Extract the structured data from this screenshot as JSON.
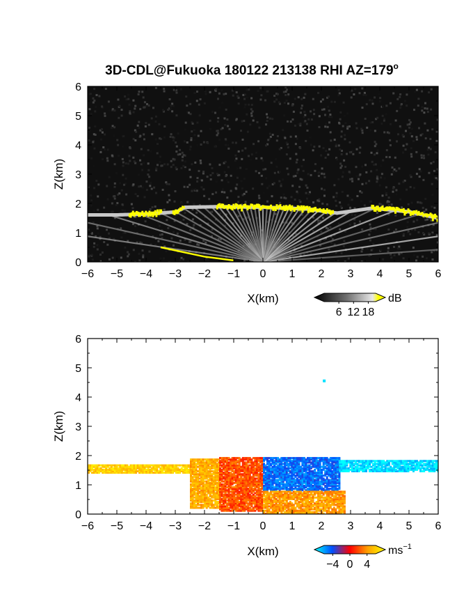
{
  "title_main": "3D-CDL@Fukuoka 180122 213138 RHI AZ=179",
  "title_sup": "o",
  "chart_data": [
    {
      "type": "heatmap",
      "quantity": "backscatter intensity",
      "xlabel": "X(km)",
      "ylabel": "Z(km)",
      "xlim": [
        -6,
        6
      ],
      "ylim": [
        0,
        6
      ],
      "xticks": [
        "−6",
        "−5",
        "−4",
        "−3",
        "−2",
        "−1",
        "0",
        "1",
        "2",
        "3",
        "4",
        "5",
        "6"
      ],
      "yticks": [
        "0",
        "1",
        "2",
        "3",
        "4",
        "5",
        "6"
      ],
      "colorbar": {
        "unit": "dB",
        "ticks": [
          "6",
          "12",
          "18"
        ],
        "range": [
          0,
          21
        ],
        "colors": [
          "#000000",
          "#6e6e6e",
          "#e8e8e8",
          "#ffff00"
        ]
      },
      "noise_level": 0,
      "boundary_layer": [
        {
          "x": -6,
          "z": 1.62
        },
        {
          "x": -5,
          "z": 1.62
        },
        {
          "x": -4,
          "z": 1.65
        },
        {
          "x": -3,
          "z": 1.72
        },
        {
          "x": -2.7,
          "z": 1.88
        },
        {
          "x": -1.5,
          "z": 1.9
        },
        {
          "x": 0,
          "z": 1.88
        },
        {
          "x": 1.5,
          "z": 1.82
        },
        {
          "x": 2.5,
          "z": 1.68
        },
        {
          "x": 3.7,
          "z": 1.85
        },
        {
          "x": 5,
          "z": 1.72
        },
        {
          "x": 6,
          "z": 1.5
        }
      ],
      "strong_echo_segments": [
        {
          "x_start": -4.6,
          "x_end": -3.5,
          "z": 1.7
        },
        {
          "x_start": -3.1,
          "x_end": -2.7,
          "z": 1.86
        },
        {
          "x_start": -1.6,
          "x_end": 2.4,
          "z": 1.8
        },
        {
          "x_start": 3.7,
          "x_end": 6.0,
          "z": 1.68
        }
      ],
      "low_layer_echo": [
        {
          "x": -3.5,
          "z": 0.5
        },
        {
          "x": -2.8,
          "z": 0.35
        },
        {
          "x": -2,
          "z": 0.18
        },
        {
          "x": -1,
          "z": 0.05
        }
      ]
    },
    {
      "type": "heatmap",
      "quantity": "Doppler velocity",
      "xlabel": "X(km)",
      "ylabel": "Z(km)",
      "xlim": [
        -6,
        6
      ],
      "ylim": [
        0,
        6
      ],
      "xticks": [
        "−6",
        "−5",
        "−4",
        "−3",
        "−2",
        "−1",
        "0",
        "1",
        "2",
        "3",
        "4",
        "5",
        "6"
      ],
      "yticks": [
        "0",
        "1",
        "2",
        "3",
        "4",
        "5",
        "6"
      ],
      "colorbar": {
        "unit": "ms",
        "unit_sup": "−1",
        "ticks": [
          "−4",
          "0",
          "4"
        ],
        "range": [
          -6,
          6
        ],
        "colors": [
          "#00ffff",
          "#0050ff",
          "#ff0000",
          "#ffa000",
          "#ffff00"
        ]
      },
      "velocity_regions": [
        {
          "x_start": -6.0,
          "x_end": -2.5,
          "z_top": 1.7,
          "z_bottom": 1.4,
          "velocity": 4.5
        },
        {
          "x_start": -2.5,
          "x_end": -1.5,
          "z_top": 1.9,
          "z_bottom": 0.2,
          "velocity": 3.5
        },
        {
          "x_start": -1.5,
          "x_end": 0.0,
          "z_top": 1.95,
          "z_bottom": 0.1,
          "velocity": 1.5
        },
        {
          "x_start": 0.0,
          "x_end": 2.6,
          "z_top": 1.95,
          "z_bottom": 0.8,
          "velocity": -3.5
        },
        {
          "x_start": 0.0,
          "x_end": 2.8,
          "z_top": 0.8,
          "z_bottom": 0.0,
          "velocity": 3.0
        },
        {
          "x_start": 2.6,
          "x_end": 6.0,
          "z_top": 1.85,
          "z_bottom": 1.45,
          "velocity": -5.5
        }
      ],
      "isolated_points": [
        {
          "x": 2.05,
          "z": 4.6,
          "velocity": -5.5
        }
      ]
    }
  ]
}
